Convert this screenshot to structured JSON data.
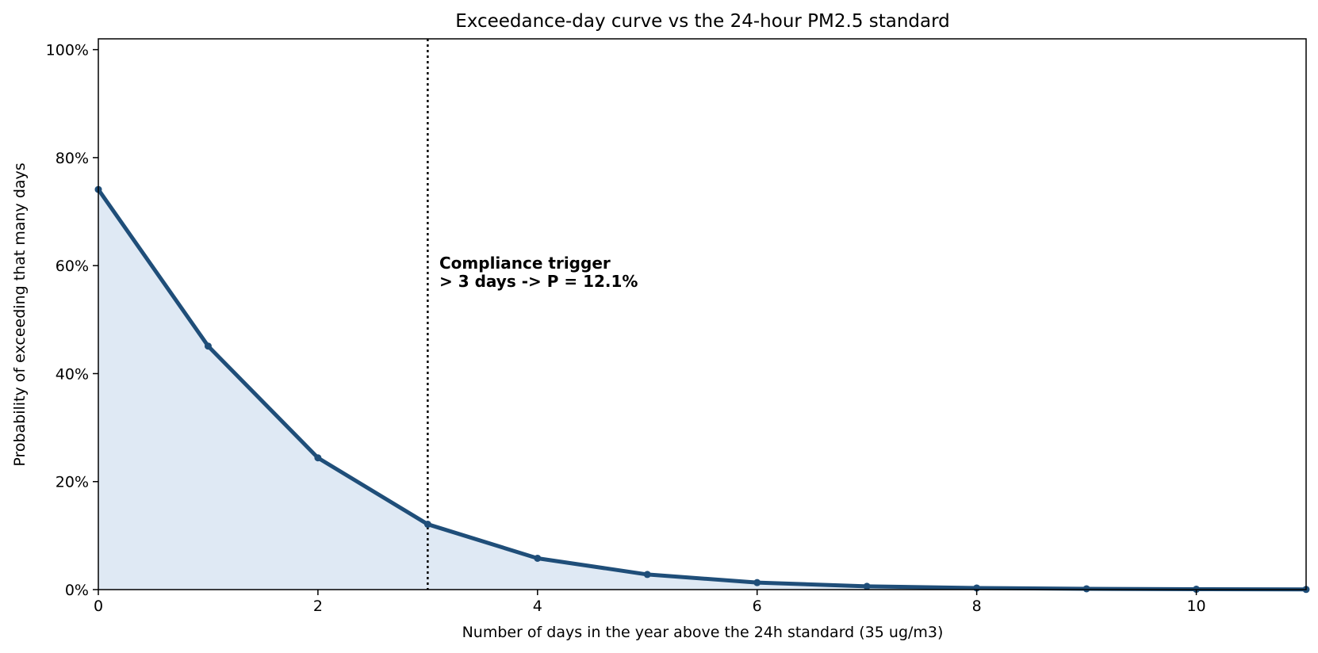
{
  "chart_data": {
    "type": "line",
    "title": "Exceedance-day curve  vs  the 24-hour PM2.5 standard",
    "xlabel": "Number of days in the year above the 24h standard (35 ug/m3)",
    "ylabel": "Probability of exceeding that many days",
    "xlim": [
      0,
      11
    ],
    "ylim": [
      0,
      1.02
    ],
    "x_ticks": [
      0,
      2,
      4,
      6,
      8,
      10
    ],
    "x_tick_labels": [
      "0",
      "2",
      "4",
      "6",
      "8",
      "10"
    ],
    "y_ticks": [
      0,
      0.2,
      0.4,
      0.6,
      0.8,
      1.0
    ],
    "y_tick_labels": [
      "0%",
      "20%",
      "40%",
      "60%",
      "80%",
      "100%"
    ],
    "grid": false,
    "series": [
      {
        "x": [
          0,
          1,
          2,
          3,
          4,
          5,
          6,
          7,
          8,
          9,
          10,
          11
        ],
        "y": [
          0.741,
          0.451,
          0.244,
          0.121,
          0.058,
          0.028,
          0.013,
          0.006,
          0.003,
          0.0015,
          0.0007,
          0.0003
        ],
        "color": "#1f4e79",
        "fill_color": "#dfe9f4"
      }
    ],
    "threshold": {
      "x": 3
    },
    "annotation": {
      "line1": "Compliance trigger",
      "line2": "> 3 days  ->  P = 12.1%"
    }
  }
}
